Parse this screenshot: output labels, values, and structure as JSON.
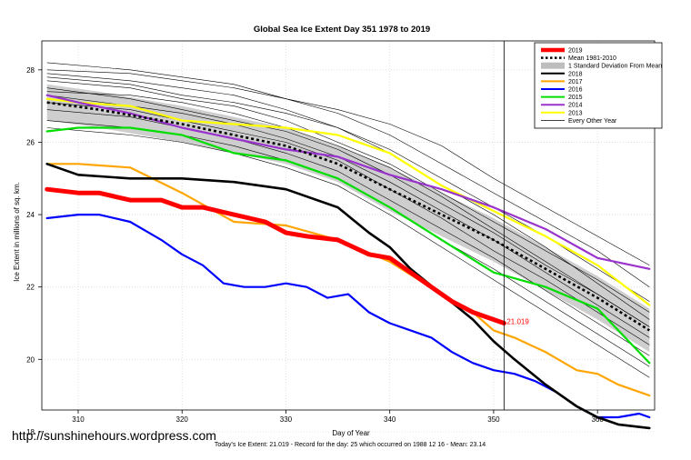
{
  "chart_data": {
    "type": "line",
    "title": "Global Sea Ice Extent Day 351 1978 to 2019",
    "xlabel": "Day of Year",
    "ylabel": "Ice Extent in millions of sq. km.",
    "xlim": [
      306.5,
      365.5
    ],
    "ylim": [
      18.6,
      28.8
    ],
    "x_ticks": [
      310,
      320,
      330,
      340,
      350,
      360
    ],
    "y_ticks": [
      18,
      20,
      22,
      24,
      26,
      28
    ],
    "grid": true,
    "legend_position": "top-right",
    "current_day": 351,
    "current_value": 21.019,
    "current_value_label": "21.019",
    "footer": "Today's Ice Extent: 21.019  - Record for the day: 25 which occurred on 1988 12 16  - Mean: 23.14",
    "watermark": "http://sunshinehours.wordpress.com",
    "legend": [
      {
        "label": "2019",
        "color": "#ff0000",
        "style": "thick"
      },
      {
        "label": "Mean 1981-2010",
        "color": "#000000",
        "style": "dotted"
      },
      {
        "label": "1 Standard Deviation From Mean",
        "color": "#c0c0c0",
        "style": "band"
      },
      {
        "label": "2018",
        "color": "#000000",
        "style": "solid"
      },
      {
        "label": "2017",
        "color": "#ffa500",
        "style": "solid"
      },
      {
        "label": "2016",
        "color": "#0000ff",
        "style": "solid"
      },
      {
        "label": "2015",
        "color": "#00dd00",
        "style": "solid"
      },
      {
        "label": "2014",
        "color": "#9933cc",
        "style": "solid"
      },
      {
        "label": "2013",
        "color": "#ffff00",
        "style": "solid"
      },
      {
        "label": "Every Other Year",
        "color": "#000000",
        "style": "thin"
      }
    ],
    "mean_band": {
      "x": [
        307,
        312,
        316,
        320,
        325,
        330,
        335,
        340,
        345,
        350,
        355,
        360,
        365
      ],
      "mean": [
        27.1,
        26.9,
        26.7,
        26.5,
        26.2,
        25.9,
        25.4,
        24.7,
        24.0,
        23.3,
        22.5,
        21.7,
        20.8
      ],
      "upper": [
        27.6,
        27.4,
        27.2,
        27.0,
        26.7,
        26.4,
        25.9,
        25.3,
        24.6,
        23.9,
        23.1,
        22.3,
        21.4
      ],
      "lower": [
        26.6,
        26.4,
        26.2,
        26.0,
        25.7,
        25.4,
        24.9,
        24.1,
        23.4,
        22.7,
        21.9,
        21.1,
        20.2
      ]
    },
    "other_years": [
      {
        "x": [
          307,
          315,
          320,
          325,
          330,
          335,
          340,
          345,
          350,
          355,
          360,
          365
        ],
        "values": [
          28.2,
          28.0,
          27.8,
          27.6,
          27.2,
          26.8,
          26.2,
          25.4,
          24.6,
          23.8,
          23.0,
          22.0
        ]
      },
      {
        "x": [
          307,
          315,
          320,
          325,
          330,
          335,
          340,
          345,
          350,
          355,
          360,
          365
        ],
        "values": [
          27.9,
          27.7,
          27.5,
          27.3,
          26.9,
          26.4,
          25.8,
          25.0,
          24.2,
          23.4,
          22.5,
          21.6
        ]
      },
      {
        "x": [
          307,
          315,
          320,
          325,
          330,
          335,
          340,
          345,
          350,
          355,
          360,
          365
        ],
        "values": [
          27.7,
          27.5,
          27.2,
          27.0,
          26.6,
          26.0,
          25.4,
          24.6,
          23.8,
          23.0,
          22.2,
          21.3
        ]
      },
      {
        "x": [
          307,
          315,
          320,
          325,
          330,
          335,
          340,
          345,
          350,
          355,
          360,
          365
        ],
        "values": [
          27.5,
          27.2,
          26.9,
          26.6,
          26.3,
          25.8,
          25.1,
          24.3,
          23.5,
          22.6,
          21.8,
          20.9
        ]
      },
      {
        "x": [
          307,
          315,
          320,
          325,
          330,
          335,
          340,
          345,
          350,
          355,
          360,
          365
        ],
        "values": [
          27.3,
          27.0,
          26.8,
          26.5,
          26.1,
          25.6,
          24.9,
          24.1,
          23.3,
          22.4,
          21.5,
          20.6
        ]
      },
      {
        "x": [
          307,
          315,
          320,
          325,
          330,
          335,
          340,
          345,
          350,
          355,
          360,
          365
        ],
        "values": [
          27.1,
          26.9,
          26.6,
          26.3,
          26.0,
          25.5,
          24.7,
          23.9,
          23.0,
          22.2,
          21.3,
          20.4
        ]
      },
      {
        "x": [
          307,
          315,
          320,
          325,
          330,
          335,
          340,
          345,
          350,
          355,
          360,
          365
        ],
        "values": [
          26.9,
          26.7,
          26.4,
          26.1,
          25.7,
          25.2,
          24.4,
          23.6,
          22.8,
          21.9,
          21.0,
          20.1
        ]
      },
      {
        "x": [
          307,
          315,
          320,
          325,
          330,
          335,
          340,
          345,
          350,
          355,
          360,
          365
        ],
        "values": [
          26.6,
          26.4,
          26.2,
          25.9,
          25.5,
          25.0,
          24.2,
          23.3,
          22.5,
          21.6,
          20.7,
          19.8
        ]
      },
      {
        "x": [
          307,
          315,
          320,
          325,
          330,
          335,
          340,
          345,
          350,
          355,
          360,
          365
        ],
        "values": [
          26.4,
          26.2,
          26.0,
          25.7,
          25.3,
          24.8,
          24.0,
          23.1,
          22.2,
          21.3,
          20.4,
          19.5
        ]
      },
      {
        "x": [
          307,
          315,
          320,
          325,
          330,
          335,
          340,
          345,
          350,
          355,
          360,
          365
        ],
        "values": [
          28.0,
          27.9,
          27.7,
          27.5,
          27.2,
          26.9,
          26.5,
          25.9,
          25.0,
          24.2,
          23.4,
          22.6
        ]
      },
      {
        "x": [
          307,
          315,
          320,
          325,
          330,
          335,
          340,
          345,
          350,
          355,
          360,
          365
        ],
        "values": [
          27.4,
          27.3,
          27.1,
          26.8,
          26.4,
          25.9,
          25.3,
          24.5,
          23.6,
          22.7,
          21.8,
          20.9
        ]
      },
      {
        "x": [
          307,
          315,
          320,
          325,
          330,
          335,
          340,
          345,
          350,
          355,
          360,
          365
        ],
        "values": [
          27.8,
          27.6,
          27.3,
          27.1,
          26.8,
          26.4,
          25.7,
          24.8,
          24.0,
          23.1,
          22.1,
          21.1
        ]
      }
    ],
    "series": [
      {
        "name": "2013",
        "color": "#ffff00",
        "width": 2.2,
        "x": [
          307,
          310,
          315,
          320,
          325,
          330,
          335,
          340,
          345,
          350,
          355,
          360,
          365
        ],
        "values": [
          27.2,
          27.1,
          27.0,
          26.6,
          26.5,
          26.4,
          26.2,
          25.7,
          24.8,
          24.1,
          23.4,
          22.6,
          21.5
        ]
      },
      {
        "name": "2014",
        "color": "#9933cc",
        "width": 2.2,
        "x": [
          307,
          310,
          315,
          320,
          325,
          330,
          335,
          340,
          345,
          350,
          355,
          360,
          365
        ],
        "values": [
          27.3,
          27.1,
          26.8,
          26.4,
          26.1,
          25.8,
          25.6,
          25.1,
          24.7,
          24.2,
          23.6,
          22.8,
          22.5
        ]
      },
      {
        "name": "2015",
        "color": "#00dd00",
        "width": 2.2,
        "x": [
          307,
          310,
          315,
          320,
          325,
          330,
          335,
          340,
          345,
          350,
          355,
          360,
          365
        ],
        "values": [
          26.3,
          26.4,
          26.4,
          26.2,
          25.7,
          25.5,
          25.0,
          24.2,
          23.3,
          22.4,
          22.0,
          21.4,
          19.9
        ]
      },
      {
        "name": "2016",
        "color": "#0000ff",
        "width": 2.2,
        "x": [
          307,
          310,
          312,
          315,
          318,
          320,
          322,
          324,
          326,
          328,
          330,
          332,
          334,
          336,
          338,
          340,
          342,
          344,
          346,
          348,
          350,
          352,
          354,
          356,
          358,
          360,
          362,
          364,
          365
        ],
        "values": [
          23.9,
          24.0,
          24.0,
          23.8,
          23.3,
          22.9,
          22.6,
          22.1,
          22.0,
          22.0,
          22.1,
          22.0,
          21.7,
          21.8,
          21.3,
          21.0,
          20.8,
          20.6,
          20.2,
          19.9,
          19.7,
          19.6,
          19.4,
          19.1,
          18.7,
          18.4,
          18.4,
          18.5,
          18.4
        ]
      },
      {
        "name": "2017",
        "color": "#ffa500",
        "width": 2.2,
        "x": [
          307,
          310,
          315,
          320,
          325,
          330,
          335,
          340,
          345,
          348,
          350,
          352,
          355,
          358,
          360,
          362,
          365
        ],
        "values": [
          25.4,
          25.4,
          25.3,
          24.6,
          23.8,
          23.7,
          23.3,
          22.7,
          21.8,
          21.3,
          20.8,
          20.6,
          20.2,
          19.7,
          19.6,
          19.3,
          19.0
        ]
      },
      {
        "name": "2018",
        "color": "#000000",
        "width": 2.6,
        "x": [
          307,
          310,
          315,
          320,
          325,
          330,
          335,
          338,
          340,
          342,
          345,
          348,
          350,
          352,
          355,
          358,
          360,
          362,
          365
        ],
        "values": [
          25.4,
          25.1,
          25.0,
          25.0,
          24.9,
          24.7,
          24.2,
          23.5,
          23.1,
          22.5,
          21.8,
          21.1,
          20.5,
          20.0,
          19.3,
          18.7,
          18.4,
          18.2,
          18.1
        ]
      },
      {
        "name": "2019",
        "color": "#ff0000",
        "width": 5,
        "x": [
          307,
          310,
          312,
          315,
          318,
          320,
          322,
          325,
          328,
          330,
          332,
          335,
          338,
          340,
          342,
          344,
          346,
          348,
          350,
          351
        ],
        "values": [
          24.7,
          24.6,
          24.6,
          24.4,
          24.4,
          24.2,
          24.2,
          24.0,
          23.8,
          23.5,
          23.4,
          23.3,
          22.9,
          22.8,
          22.4,
          22.0,
          21.6,
          21.3,
          21.1,
          21.0
        ]
      }
    ]
  }
}
